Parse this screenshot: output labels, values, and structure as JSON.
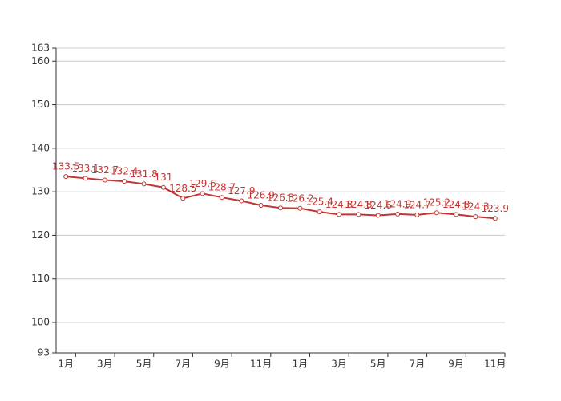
{
  "chart_data": {
    "type": "line",
    "categories": [
      "1月",
      null,
      "3月",
      null,
      "5月",
      null,
      "7月",
      null,
      "9月",
      null,
      "11月",
      null,
      "1月",
      null,
      "3月",
      null,
      "5月",
      null,
      "7月",
      null,
      "9月",
      null,
      "11月"
    ],
    "series": [
      {
        "color": "#c23531",
        "values": [
          133.5,
          133.1,
          132.7,
          132.4,
          131.8,
          131,
          128.5,
          129.6,
          128.7,
          127.9,
          126.9,
          126.3,
          126.2,
          125.4,
          124.8,
          124.8,
          124.6,
          124.9,
          124.7,
          125.2,
          124.8,
          124.3,
          123.9
        ]
      }
    ],
    "ylim": [
      93,
      163
    ],
    "yticks": [
      93,
      100,
      110,
      120,
      130,
      140,
      150,
      160,
      163
    ],
    "grid": true
  }
}
